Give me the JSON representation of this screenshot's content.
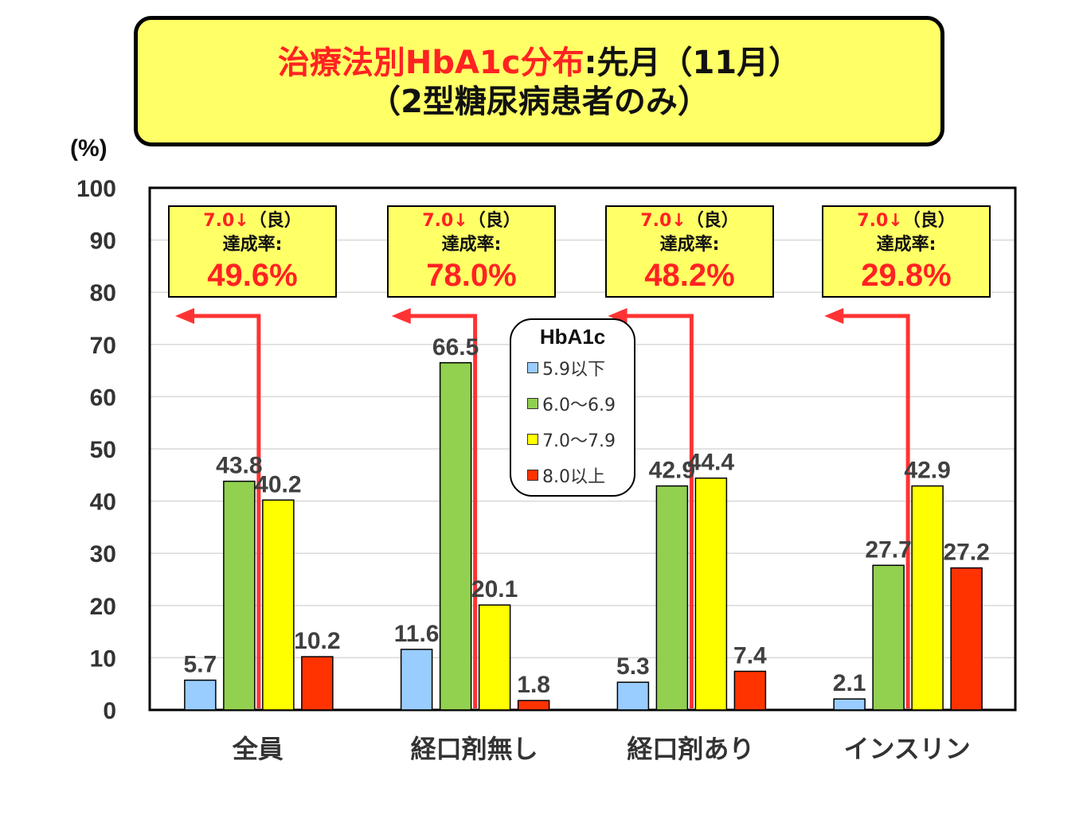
{
  "title": {
    "line1_red": "治療法別HbA1c分布",
    "line1_black": ":先月（11月）",
    "line2": "（2型糖尿病患者のみ）"
  },
  "unit_label": "(%)",
  "legend": {
    "title": "HbA1c",
    "items": [
      "5.9以下",
      "6.0〜6.9",
      "7.0〜7.9",
      "8.0以上"
    ]
  },
  "rate_boxes": [
    {
      "cond_value": "7.0↓",
      "cond_suffix": "（良）",
      "label": "達成率:",
      "value": "49.6%"
    },
    {
      "cond_value": "7.0↓",
      "cond_suffix": "（良）",
      "label": "達成率:",
      "value": "78.0%"
    },
    {
      "cond_value": "7.0↓",
      "cond_suffix": "（良）",
      "label": "達成率:",
      "value": "48.2%"
    },
    {
      "cond_value": "7.0↓",
      "cond_suffix": "（良）",
      "label": "達成率:",
      "value": "29.8%"
    }
  ],
  "colors": {
    "series": [
      "#99ccff",
      "#92d050",
      "#ffff00",
      "#ff3300"
    ],
    "arrow": "#ff3333",
    "highlight_bg": "#ffff66",
    "text_red": "#ff2222"
  },
  "chart_data": {
    "type": "bar",
    "categories": [
      "全員",
      "経口剤無し",
      "経口剤あり",
      "インスリン"
    ],
    "series": [
      {
        "name": "5.9以下",
        "values": [
          5.7,
          11.6,
          5.3,
          2.1
        ]
      },
      {
        "name": "6.0〜6.9",
        "values": [
          43.8,
          66.5,
          42.9,
          27.7
        ]
      },
      {
        "name": "7.0〜7.9",
        "values": [
          40.2,
          20.1,
          44.4,
          42.9
        ]
      },
      {
        "name": "8.0以上",
        "values": [
          10.2,
          1.8,
          7.4,
          27.2
        ]
      }
    ],
    "ylim": [
      0,
      100
    ],
    "yticks": [
      0,
      10,
      20,
      30,
      40,
      50,
      60,
      70,
      80,
      90,
      100
    ],
    "ylabel": "(%)",
    "xlabel": "",
    "grid": true,
    "legend_placement": "center-inside"
  }
}
